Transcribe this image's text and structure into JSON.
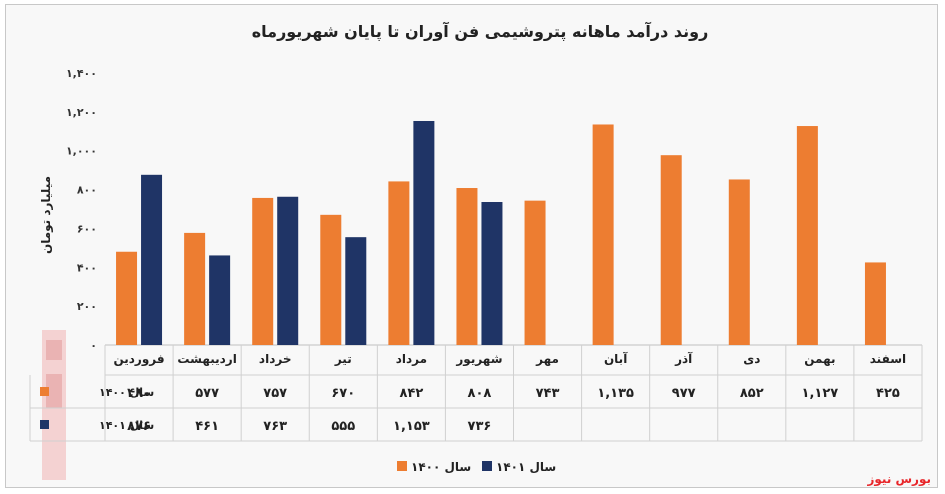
{
  "chart_data": {
    "type": "bar",
    "title": "روند درآمد ماهانه پتروشیمی فن آوران تا پایان شهریورماه",
    "ylabel": "میلیارد تومان",
    "ylim": [
      0,
      1400
    ],
    "yticks": [
      0,
      200,
      400,
      600,
      800,
      1000,
      1200,
      1400
    ],
    "ytick_labels": [
      "۰",
      "۲۰۰",
      "۴۰۰",
      "۶۰۰",
      "۸۰۰",
      "۱,۰۰۰",
      "۱,۲۰۰",
      "۱,۴۰۰"
    ],
    "categories": [
      "فروردین",
      "اردیبهشت",
      "خرداد",
      "تیر",
      "مرداد",
      "شهریور",
      "مهر",
      "آبان",
      "آذر",
      "دی",
      "بهمن",
      "اسفند"
    ],
    "series": [
      {
        "name": "سال ۱۴۰۰",
        "color": "#ed7d31",
        "values": [
          480,
          577,
          757,
          670,
          842,
          808,
          743,
          1135,
          977,
          852,
          1127,
          425
        ],
        "value_labels": [
          "۴۸۰",
          "۵۷۷",
          "۷۵۷",
          "۶۷۰",
          "۸۴۲",
          "۸۰۸",
          "۷۴۳",
          "۱,۱۳۵",
          "۹۷۷",
          "۸۵۲",
          "۱,۱۲۷",
          "۴۲۵"
        ]
      },
      {
        "name": "سال ۱۴۰۱",
        "color": "#1f3466",
        "values": [
          876,
          461,
          763,
          555,
          1153,
          736,
          null,
          null,
          null,
          null,
          null,
          null
        ],
        "value_labels": [
          "۸۷۶",
          "۴۶۱",
          "۷۶۳",
          "۵۵۵",
          "۱,۱۵۳",
          "۷۳۶",
          "",
          "",
          "",
          "",
          "",
          ""
        ]
      }
    ],
    "legend_position": "bottom",
    "data_table": true,
    "grid": false
  },
  "brand": "بورس نیوز"
}
